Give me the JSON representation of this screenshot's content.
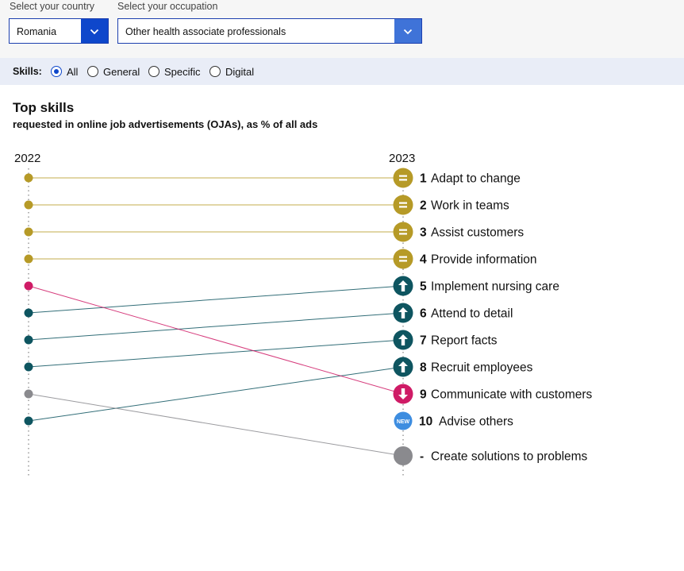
{
  "filters": {
    "country_label": "Select your country",
    "country_value": "Romania",
    "occupation_label": "Select your occupation",
    "occupation_value": "Other health associate professionals"
  },
  "skills_filter": {
    "label": "Skills:",
    "options": [
      "All",
      "General",
      "Specific",
      "Digital"
    ],
    "selected": "All"
  },
  "colors": {
    "same": "#b69a27",
    "up": "#0e5560",
    "down": "#cf1b66",
    "new": "#3d8de0",
    "dropped": "#8a8a8e",
    "accent": "#0e47cb"
  },
  "chart_data": {
    "type": "slope",
    "title": "Top skills",
    "subtitle": "requested in online job advertisements (OJAs), as % of all ads",
    "x": [
      "2022",
      "2023"
    ],
    "skills": [
      {
        "name": "Adapt to change",
        "rank_2022": 1,
        "rank_2023": "1",
        "change": "same"
      },
      {
        "name": "Work in teams",
        "rank_2022": 2,
        "rank_2023": "2",
        "change": "same"
      },
      {
        "name": "Assist customers",
        "rank_2022": 3,
        "rank_2023": "3",
        "change": "same"
      },
      {
        "name": "Provide information",
        "rank_2022": 4,
        "rank_2023": "4",
        "change": "same"
      },
      {
        "name": "Implement nursing care",
        "rank_2022": 6,
        "rank_2023": "5",
        "change": "up"
      },
      {
        "name": "Attend to detail",
        "rank_2022": 7,
        "rank_2023": "6",
        "change": "up"
      },
      {
        "name": "Report facts",
        "rank_2022": 8,
        "rank_2023": "7",
        "change": "up"
      },
      {
        "name": "Recruit employees",
        "rank_2022": 10,
        "rank_2023": "8",
        "change": "up"
      },
      {
        "name": "Communicate with customers",
        "rank_2022": 5,
        "rank_2023": "9",
        "change": "down"
      },
      {
        "name": "Advise others",
        "rank_2022": null,
        "rank_2023": "10",
        "change": "new"
      },
      {
        "name": "Create solutions to problems",
        "rank_2022": 9,
        "rank_2023": "-",
        "change": "dropped"
      }
    ],
    "new_badge": "NEW"
  }
}
